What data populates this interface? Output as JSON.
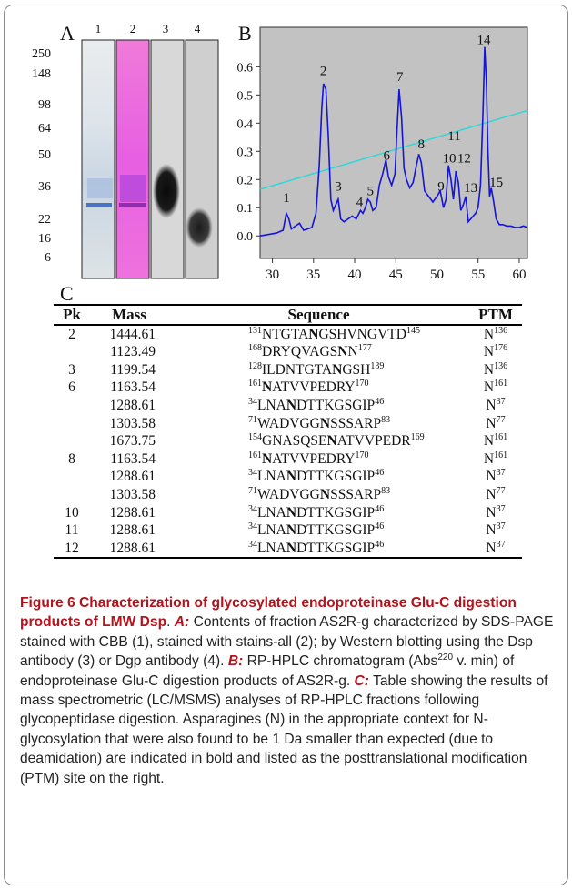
{
  "panels": {
    "a": "A",
    "b": "B",
    "c": "C"
  },
  "gel": {
    "mw_markers": [
      "250",
      "148",
      "98",
      "64",
      "50",
      "36",
      "22",
      "16",
      "6"
    ],
    "lanes": [
      "1",
      "2",
      "3",
      "4"
    ]
  },
  "chart_data": {
    "type": "line",
    "xlim": [
      28.5,
      61
    ],
    "ylim": [
      -0.08,
      0.74
    ],
    "x_ticks": [
      "30",
      "35",
      "40",
      "45",
      "50",
      "55",
      "60"
    ],
    "y_ticks": [
      "0.0",
      "0.1",
      "0.2",
      "0.3",
      "0.4",
      "0.5",
      "0.6"
    ],
    "grid": false,
    "background": "#c2c2c2",
    "series": [
      {
        "color": "#1515d6",
        "x": [
          28.5,
          29.5,
          30.5,
          31.3,
          31.7,
          32.0,
          32.3,
          32.8,
          33.3,
          33.8,
          34.3,
          34.8,
          35.3,
          35.7,
          36.0,
          36.2,
          36.5,
          36.8,
          37.1,
          37.4,
          37.7,
          38.0,
          38.3,
          38.7,
          39.2,
          39.7,
          40.2,
          40.7,
          41.0,
          41.3,
          41.6,
          41.9,
          42.2,
          42.6,
          43.0,
          43.4,
          43.8,
          44.1,
          44.5,
          44.9,
          45.1,
          45.4,
          45.7,
          46.0,
          46.3,
          46.7,
          47.1,
          47.5,
          47.8,
          48.1,
          48.5,
          49.0,
          49.5,
          50.0,
          50.4,
          50.8,
          51.1,
          51.4,
          51.7,
          52.0,
          52.3,
          52.6,
          52.9,
          53.2,
          53.5,
          53.8,
          54.1,
          54.4,
          54.7,
          55.0,
          55.3,
          55.6,
          55.8,
          56.0,
          56.2,
          56.4,
          56.6,
          56.9,
          57.2,
          57.6,
          58.0,
          58.5,
          59.0,
          59.5,
          60.0,
          60.5,
          61.0
        ],
        "y": [
          0.0,
          0.005,
          0.01,
          0.02,
          0.08,
          0.06,
          0.025,
          0.035,
          0.045,
          0.02,
          0.025,
          0.03,
          0.08,
          0.25,
          0.45,
          0.54,
          0.52,
          0.35,
          0.13,
          0.09,
          0.11,
          0.13,
          0.06,
          0.05,
          0.06,
          0.07,
          0.06,
          0.09,
          0.08,
          0.1,
          0.13,
          0.12,
          0.09,
          0.1,
          0.18,
          0.22,
          0.27,
          0.21,
          0.18,
          0.22,
          0.35,
          0.52,
          0.42,
          0.24,
          0.2,
          0.17,
          0.19,
          0.25,
          0.29,
          0.26,
          0.16,
          0.14,
          0.12,
          0.14,
          0.16,
          0.1,
          0.13,
          0.25,
          0.2,
          0.13,
          0.23,
          0.19,
          0.09,
          0.11,
          0.14,
          0.05,
          0.06,
          0.07,
          0.08,
          0.1,
          0.18,
          0.45,
          0.67,
          0.55,
          0.3,
          0.14,
          0.17,
          0.12,
          0.06,
          0.04,
          0.04,
          0.035,
          0.035,
          0.03,
          0.03,
          0.035,
          0.03
        ]
      },
      {
        "color": "#2ad8d8",
        "x": [
          28.5,
          61.0
        ],
        "y": [
          0.165,
          0.445
        ]
      }
    ],
    "peak_labels": [
      {
        "label": "1",
        "x": 31.7,
        "y": 0.12
      },
      {
        "label": "2",
        "x": 36.2,
        "y": 0.57
      },
      {
        "label": "3",
        "x": 38.0,
        "y": 0.16
      },
      {
        "label": "4",
        "x": 40.6,
        "y": 0.105
      },
      {
        "label": "5",
        "x": 41.9,
        "y": 0.145
      },
      {
        "label": "6",
        "x": 43.9,
        "y": 0.27
      },
      {
        "label": "7",
        "x": 45.5,
        "y": 0.55
      },
      {
        "label": "8",
        "x": 48.1,
        "y": 0.31
      },
      {
        "label": "9",
        "x": 50.5,
        "y": 0.16
      },
      {
        "label": "10",
        "x": 51.5,
        "y": 0.26
      },
      {
        "label": "11",
        "x": 52.1,
        "y": 0.34
      },
      {
        "label": "12",
        "x": 53.3,
        "y": 0.26
      },
      {
        "label": "13",
        "x": 54.1,
        "y": 0.155
      },
      {
        "label": "14",
        "x": 55.7,
        "y": 0.68
      },
      {
        "label": "15",
        "x": 57.2,
        "y": 0.175
      }
    ]
  },
  "table": {
    "headers": [
      "Pk",
      "Mass",
      "Sequence",
      "PTM"
    ],
    "rows": [
      {
        "pk": "2",
        "mass": "1444.61",
        "seq": [
          {
            "t": "131",
            "s": 1
          },
          {
            "t": "NTGTA"
          },
          {
            "t": "N",
            "b": 1
          },
          {
            "t": "GSHVNGVTD"
          },
          {
            "t": "145",
            "s": 1
          }
        ],
        "ptm": [
          {
            "t": "N"
          },
          {
            "t": "136",
            "s": 1
          }
        ]
      },
      {
        "pk": "",
        "mass": "1123.49",
        "seq": [
          {
            "t": "168",
            "s": 1
          },
          {
            "t": "DRYQVAGS"
          },
          {
            "t": "N",
            "b": 1
          },
          {
            "t": "N"
          },
          {
            "t": "177",
            "s": 1
          }
        ],
        "ptm": [
          {
            "t": "N"
          },
          {
            "t": "176",
            "s": 1
          }
        ]
      },
      {
        "pk": "3",
        "mass": "1199.54",
        "seq": [
          {
            "t": "128",
            "s": 1
          },
          {
            "t": "ILDNTGTA"
          },
          {
            "t": "N",
            "b": 1
          },
          {
            "t": "GSH"
          },
          {
            "t": "139",
            "s": 1
          }
        ],
        "ptm": [
          {
            "t": "N"
          },
          {
            "t": "136",
            "s": 1
          }
        ]
      },
      {
        "pk": "6",
        "mass": "1163.54",
        "seq": [
          {
            "t": "161",
            "s": 1
          },
          {
            "t": "N",
            "b": 1
          },
          {
            "t": "ATVVPEDRY"
          },
          {
            "t": "170",
            "s": 1
          }
        ],
        "ptm": [
          {
            "t": "N"
          },
          {
            "t": "161",
            "s": 1
          }
        ]
      },
      {
        "pk": "",
        "mass": "1288.61",
        "seq": [
          {
            "t": "34",
            "s": 1
          },
          {
            "t": "LNA"
          },
          {
            "t": "N",
            "b": 1
          },
          {
            "t": "DTTKGSGIP"
          },
          {
            "t": "46",
            "s": 1
          }
        ],
        "ptm": [
          {
            "t": "N"
          },
          {
            "t": "37",
            "s": 1
          }
        ]
      },
      {
        "pk": "",
        "mass": "1303.58",
        "seq": [
          {
            "t": "71",
            "s": 1
          },
          {
            "t": "WADVGG"
          },
          {
            "t": "N",
            "b": 1
          },
          {
            "t": "SSSARP"
          },
          {
            "t": "83",
            "s": 1
          }
        ],
        "ptm": [
          {
            "t": "N"
          },
          {
            "t": "77",
            "s": 1
          }
        ]
      },
      {
        "pk": "",
        "mass": "1673.75",
        "seq": [
          {
            "t": "154",
            "s": 1
          },
          {
            "t": "GNASQSE"
          },
          {
            "t": "N",
            "b": 1
          },
          {
            "t": "ATVVPEDR"
          },
          {
            "t": "169",
            "s": 1
          }
        ],
        "ptm": [
          {
            "t": "N"
          },
          {
            "t": "161",
            "s": 1
          }
        ]
      },
      {
        "pk": "8",
        "mass": "1163.54",
        "seq": [
          {
            "t": "161",
            "s": 1
          },
          {
            "t": "N",
            "b": 1
          },
          {
            "t": "ATVVPEDRY"
          },
          {
            "t": "170",
            "s": 1
          }
        ],
        "ptm": [
          {
            "t": "N"
          },
          {
            "t": "161",
            "s": 1
          }
        ]
      },
      {
        "pk": "",
        "mass": "1288.61",
        "seq": [
          {
            "t": "34",
            "s": 1
          },
          {
            "t": "LNA"
          },
          {
            "t": "N",
            "b": 1
          },
          {
            "t": "DTTKGSGIP"
          },
          {
            "t": "46",
            "s": 1
          }
        ],
        "ptm": [
          {
            "t": "N"
          },
          {
            "t": "37",
            "s": 1
          }
        ]
      },
      {
        "pk": "",
        "mass": "1303.58",
        "seq": [
          {
            "t": "71",
            "s": 1
          },
          {
            "t": "WADVGG"
          },
          {
            "t": "N",
            "b": 1
          },
          {
            "t": "SSSARP"
          },
          {
            "t": "83",
            "s": 1
          }
        ],
        "ptm": [
          {
            "t": "N"
          },
          {
            "t": "77",
            "s": 1
          }
        ]
      },
      {
        "pk": "10",
        "mass": "1288.61",
        "seq": [
          {
            "t": "34",
            "s": 1
          },
          {
            "t": "LNA"
          },
          {
            "t": "N",
            "b": 1
          },
          {
            "t": "DTTKGSGIP"
          },
          {
            "t": "46",
            "s": 1
          }
        ],
        "ptm": [
          {
            "t": "N"
          },
          {
            "t": "37",
            "s": 1
          }
        ]
      },
      {
        "pk": "11",
        "mass": "1288.61",
        "seq": [
          {
            "t": "34",
            "s": 1
          },
          {
            "t": "LNA"
          },
          {
            "t": "N",
            "b": 1
          },
          {
            "t": "DTTKGSGIP"
          },
          {
            "t": "46",
            "s": 1
          }
        ],
        "ptm": [
          {
            "t": "N"
          },
          {
            "t": "37",
            "s": 1
          }
        ]
      },
      {
        "pk": "12",
        "mass": "1288.61",
        "seq": [
          {
            "t": "34",
            "s": 1
          },
          {
            "t": "LNA"
          },
          {
            "t": "N",
            "b": 1
          },
          {
            "t": "DTTKGSGIP"
          },
          {
            "t": "46",
            "s": 1
          }
        ],
        "ptm": [
          {
            "t": "N"
          },
          {
            "t": "37",
            "s": 1
          }
        ]
      }
    ]
  },
  "caption": {
    "fig_label": "Figure 6 Characterization of glycosylated endoproteinase Glu-C digestion products of LMW Dsp",
    "after_fig": ". ",
    "a_label": "A:",
    "a_text": " Contents of fraction AS2R-g characterized by SDS-PAGE stained with CBB (1), stained with stains-all (2); by Western blotting using the Dsp antibody (3) or Dgp antibody (4). ",
    "b_label": "B:",
    "b_text_1": " RP-HPLC chromatogram (Abs",
    "b_sup": "220",
    "b_text_2": " v. min) of endoproteinase Glu-C digestion products of AS2R-g. ",
    "c_label": "C:",
    "c_text": " Table showing the results of mass spectrometric (LC/MSMS) analyses of RP-HPLC fractions following glycopeptidase digestion. Asparagines (N) in the appropriate context for N-glycosylation that were also found to be 1 Da smaller than expected (due to deamidation) are indicated in bold and listed as the posttranslational modification (PTM) site on the right."
  }
}
